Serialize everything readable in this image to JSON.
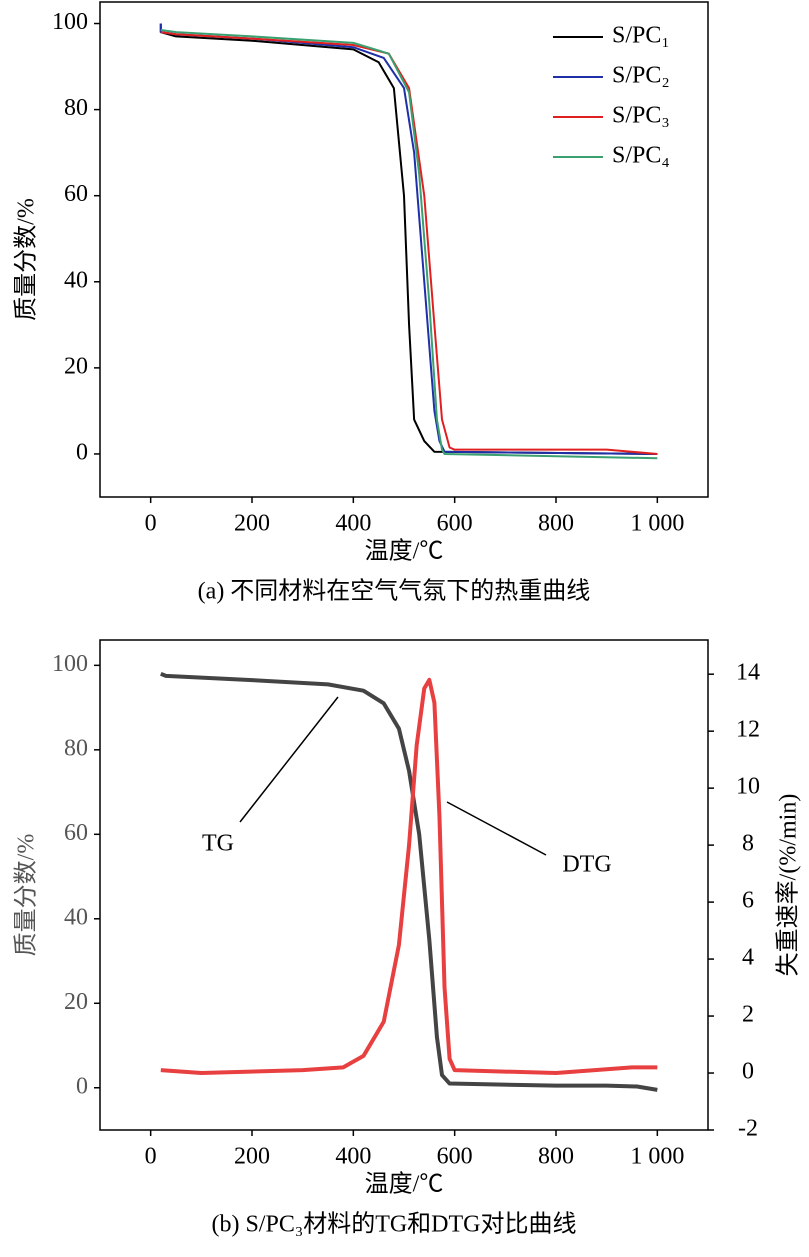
{
  "chart_data": [
    {
      "type": "line",
      "caption": "(a) 不同材料在空气气氛下的热重曲线",
      "xlabel": "温度/℃",
      "ylabel": "质量分数/%",
      "xlim": [
        -100,
        1100
      ],
      "xticks": [
        0,
        200,
        400,
        600,
        800,
        {
          "value": 1000,
          "label": "1 000"
        }
      ],
      "ylim": [
        -10,
        105
      ],
      "yticks": [
        0,
        20,
        40,
        60,
        80,
        100
      ],
      "legend": "upper right",
      "series": [
        {
          "name": "S/PC₁",
          "color": "#000000",
          "x": [
            20,
            20,
            50,
            200,
            400,
            450,
            480,
            500,
            510,
            520,
            540,
            560,
            1000
          ],
          "values": [
            100,
            98,
            97,
            96,
            94,
            91,
            85,
            60,
            30,
            8,
            3,
            0.5,
            0
          ]
        },
        {
          "name": "S/PC₂",
          "color": "#1f2fa8",
          "x": [
            20,
            20,
            50,
            200,
            400,
            460,
            500,
            520,
            540,
            560,
            570,
            580,
            1000
          ],
          "values": [
            100,
            98,
            97.5,
            96.5,
            94.5,
            92,
            85,
            70,
            40,
            10,
            3,
            0.5,
            0
          ]
        },
        {
          "name": "S/PC₃",
          "color": "#e02020",
          "x": [
            20,
            50,
            200,
            400,
            470,
            510,
            540,
            560,
            575,
            590,
            600,
            900,
            1000
          ],
          "values": [
            98,
            97.5,
            96.5,
            95,
            93,
            85,
            60,
            30,
            8,
            1.5,
            1,
            1,
            0
          ]
        },
        {
          "name": "S/PC₄",
          "color": "#3aa070",
          "x": [
            20,
            50,
            200,
            400,
            470,
            510,
            530,
            550,
            565,
            575,
            580,
            1000
          ],
          "values": [
            98.5,
            98,
            97,
            95.5,
            93,
            84,
            65,
            35,
            8,
            1,
            0,
            -1
          ]
        }
      ]
    },
    {
      "type": "line",
      "caption": "(b) S/PC₃材料的TG和DTG对比曲线",
      "xlabel": "温度/℃",
      "ylabel": "质量分数/%",
      "y2label": "失重速率/(%/min)",
      "xlim": [
        -100,
        1100
      ],
      "xticks": [
        0,
        200,
        400,
        600,
        800,
        {
          "value": 1000,
          "label": "1 000"
        }
      ],
      "ylim": [
        -10,
        106
      ],
      "yticks": [
        0,
        20,
        40,
        60,
        80,
        100
      ],
      "y2lim": [
        -2,
        15.2
      ],
      "y2ticks": [
        -2,
        0,
        2,
        4,
        6,
        8,
        10,
        12,
        14
      ],
      "annotations": [
        "TG",
        "DTG"
      ],
      "series": [
        {
          "name": "TG",
          "color": "#444444",
          "x": [
            20,
            30,
            200,
            350,
            420,
            460,
            490,
            510,
            530,
            550,
            565,
            575,
            590,
            800,
            900,
            960,
            1000
          ],
          "values": [
            98,
            97.5,
            96.5,
            95.5,
            94,
            91,
            85,
            75,
            60,
            35,
            12,
            3,
            1,
            0.5,
            0.5,
            0.3,
            -0.5
          ]
        },
        {
          "name": "DTG",
          "color": "#e84040",
          "axis": "y2",
          "x": [
            20,
            100,
            300,
            380,
            420,
            460,
            490,
            510,
            525,
            540,
            550,
            560,
            570,
            580,
            590,
            600,
            800,
            950,
            1000
          ],
          "values": [
            0.1,
            0,
            0.1,
            0.2,
            0.6,
            1.8,
            4.5,
            8,
            11.5,
            13.5,
            13.8,
            13,
            9,
            3,
            0.5,
            0.1,
            0,
            0.2,
            0.2
          ]
        }
      ]
    }
  ]
}
